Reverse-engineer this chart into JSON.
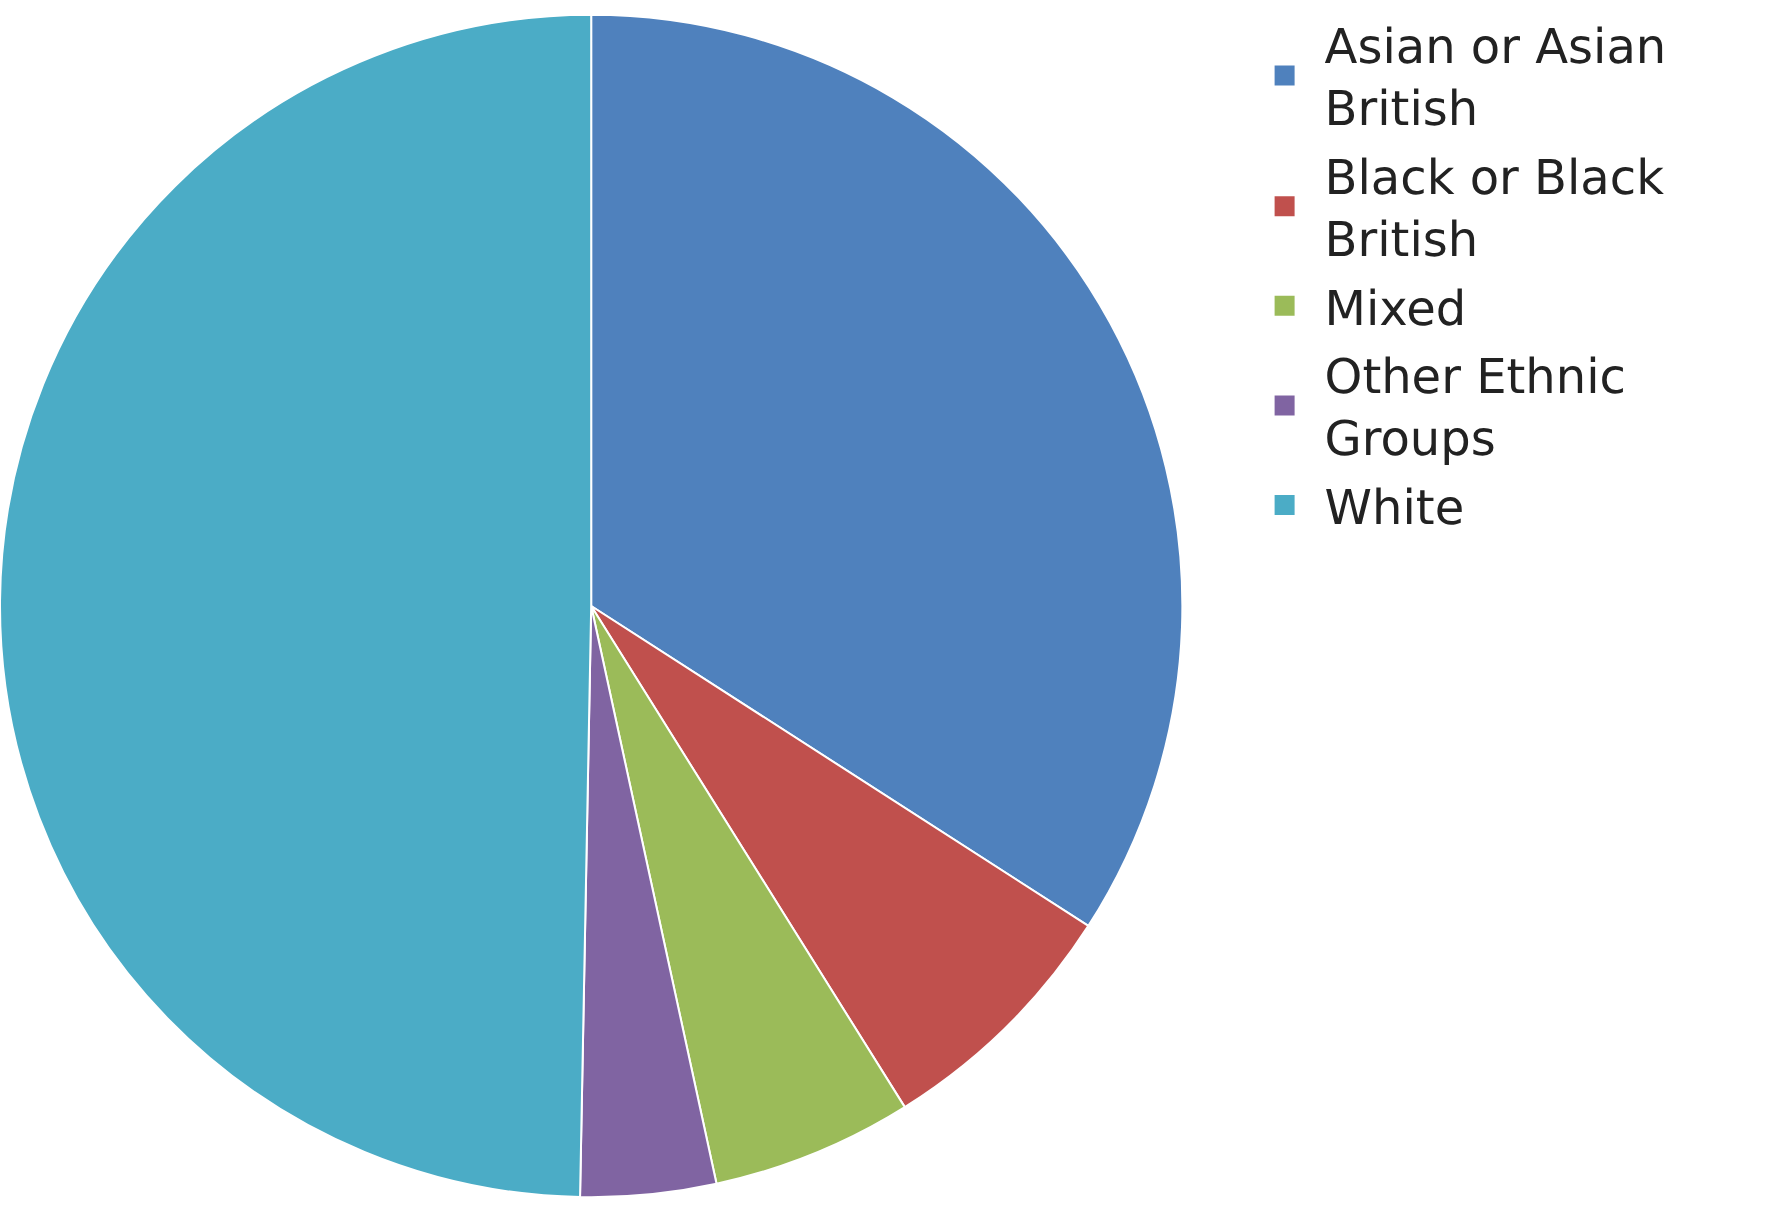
{
  "chart_data": {
    "type": "pie",
    "categories": [
      "Asian or Asian British",
      "Black or Black British",
      "Mixed",
      "Other Ethnic Groups",
      "White"
    ],
    "values": [
      34.1,
      7.0,
      5.5,
      3.7,
      49.7
    ],
    "colors": [
      "#4f81bd",
      "#c0504d",
      "#9bbb59",
      "#8064a2",
      "#4bacc6"
    ],
    "legend": "right"
  }
}
